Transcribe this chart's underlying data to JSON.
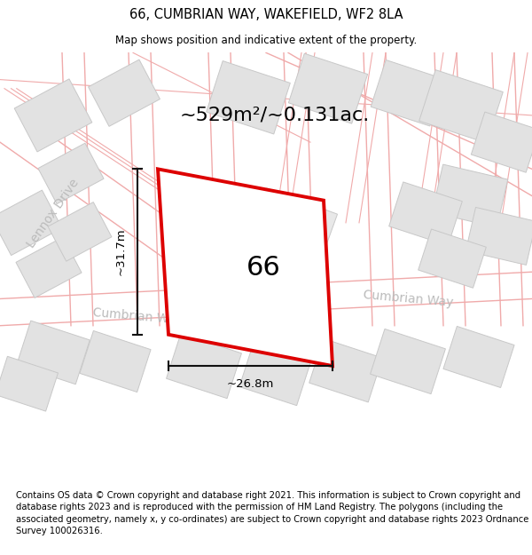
{
  "title": "66, CUMBRIAN WAY, WAKEFIELD, WF2 8LA",
  "subtitle": "Map shows position and indicative extent of the property.",
  "footer": "Contains OS data © Crown copyright and database right 2021. This information is subject to Crown copyright and database rights 2023 and is reproduced with the permission of HM Land Registry. The polygons (including the associated geometry, namely x, y co-ordinates) are subject to Crown copyright and database rights 2023 Ordnance Survey 100026316.",
  "area_label": "~529m²/~0.131ac.",
  "width_label": "~26.8m",
  "height_label": "~31.7m",
  "plot_number": "66",
  "bg_color": "#ffffff",
  "building_fill": "#e2e2e2",
  "building_edge": "#c8c8c8",
  "road_line_color": "#f0aaaa",
  "plot_edge_color": "#dd0000",
  "plot_fill": "#ffffff",
  "dim_color": "#111111",
  "street_color": "#bbbbbb",
  "title_fontsize": 10.5,
  "subtitle_fontsize": 8.5,
  "footer_fontsize": 7.2,
  "area_fontsize": 16,
  "plot_num_fontsize": 22,
  "dim_fontsize": 9.5,
  "street_fontsize": 10
}
